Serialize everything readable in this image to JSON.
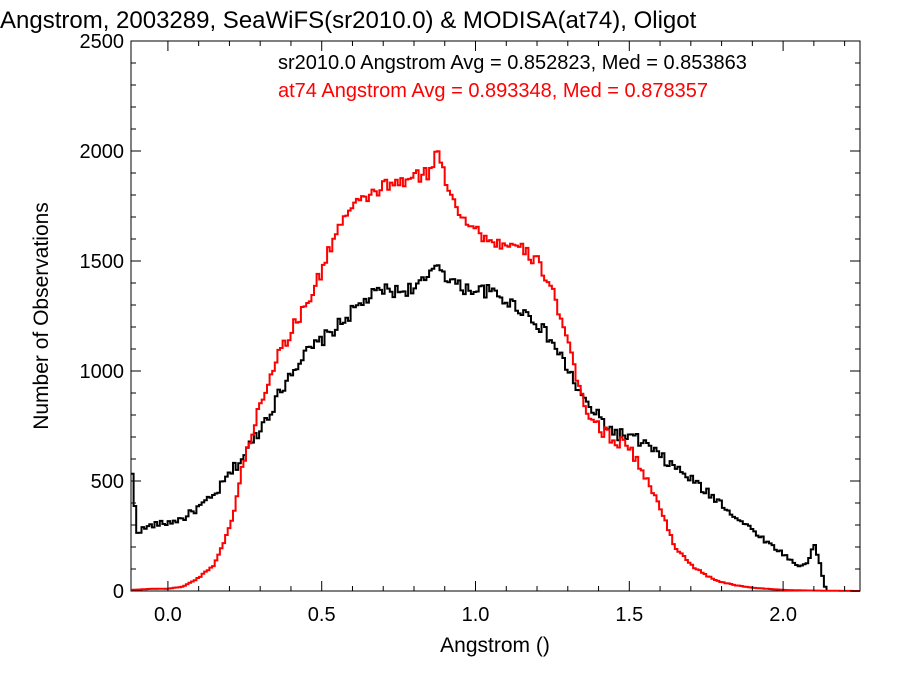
{
  "chart_data": {
    "type": "line",
    "title": "Angstrom, 2003289, SeaWiFS(sr2010.0) & MODISA(at74), Oligot",
    "xlabel": "Angstrom ()",
    "ylabel": "Number of Observations",
    "xlim": [
      -0.12,
      2.25
    ],
    "ylim": [
      0,
      2500
    ],
    "xticks": [
      0.0,
      0.5,
      1.0,
      1.5,
      2.0
    ],
    "xtick_labels": [
      "0.0",
      "0.5",
      "1.0",
      "1.5",
      "2.0"
    ],
    "yticks": [
      0,
      500,
      1000,
      1500,
      2000,
      2500
    ],
    "ytick_labels": [
      "0",
      "500",
      "1000",
      "1500",
      "2000",
      "2500"
    ],
    "grid": false,
    "step": true,
    "annotations": [
      {
        "text": "sr2010.0 Angstrom Avg = 0.852823, Med = 0.853863",
        "color": "#000000"
      },
      {
        "text": "at74 Angstrom Avg = 0.893348, Med = 0.878357",
        "color": "#ff0000"
      }
    ],
    "series": [
      {
        "color": "#000000",
        "x": [
          -0.12,
          -0.1,
          -0.05,
          0.0,
          0.05,
          0.1,
          0.15,
          0.2,
          0.25,
          0.3,
          0.35,
          0.4,
          0.45,
          0.5,
          0.55,
          0.6,
          0.65,
          0.7,
          0.75,
          0.8,
          0.85,
          0.875,
          0.9,
          0.95,
          1.0,
          1.05,
          1.1,
          1.15,
          1.2,
          1.25,
          1.3,
          1.35,
          1.4,
          1.45,
          1.5,
          1.55,
          1.6,
          1.65,
          1.7,
          1.75,
          1.8,
          1.85,
          1.9,
          1.95,
          2.0,
          2.05,
          2.08,
          2.1,
          2.12,
          2.14
        ],
        "values": [
          590,
          270,
          300,
          310,
          330,
          380,
          430,
          530,
          620,
          740,
          860,
          1000,
          1080,
          1140,
          1200,
          1270,
          1330,
          1370,
          1360,
          1380,
          1420,
          1500,
          1440,
          1380,
          1370,
          1360,
          1320,
          1280,
          1220,
          1130,
          1010,
          870,
          790,
          720,
          700,
          670,
          610,
          560,
          510,
          450,
          400,
          330,
          280,
          220,
          170,
          110,
          130,
          220,
          120,
          0
        ]
      },
      {
        "color": "#ff0000",
        "x": [
          -0.12,
          -0.05,
          0.0,
          0.05,
          0.1,
          0.15,
          0.2,
          0.25,
          0.3,
          0.35,
          0.4,
          0.45,
          0.5,
          0.55,
          0.6,
          0.65,
          0.7,
          0.75,
          0.8,
          0.85,
          0.88,
          0.9,
          0.95,
          1.0,
          1.05,
          1.1,
          1.15,
          1.2,
          1.25,
          1.3,
          1.35,
          1.4,
          1.45,
          1.5,
          1.55,
          1.6,
          1.65,
          1.7,
          1.75,
          1.8,
          1.85,
          1.9,
          1.95,
          2.0,
          2.05,
          2.1,
          2.15,
          2.25
        ],
        "values": [
          5,
          10,
          10,
          20,
          60,
          120,
          280,
          600,
          850,
          1050,
          1180,
          1300,
          1450,
          1650,
          1740,
          1790,
          1840,
          1850,
          1880,
          1900,
          2010,
          1880,
          1720,
          1640,
          1590,
          1570,
          1550,
          1500,
          1380,
          1120,
          860,
          740,
          690,
          660,
          520,
          380,
          200,
          120,
          70,
          40,
          25,
          15,
          10,
          5,
          3,
          2,
          1,
          0
        ]
      }
    ]
  }
}
